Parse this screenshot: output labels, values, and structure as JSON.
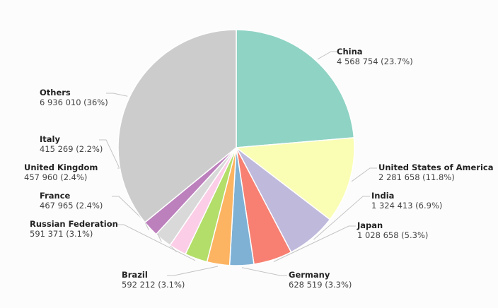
{
  "chart_data": {
    "type": "pie",
    "slices": [
      {
        "name": "China",
        "value": "4 568 754",
        "pct": "23.7%",
        "share": 23.7,
        "color": "#8fd3c4"
      },
      {
        "name": "United States of America",
        "value": "2 281 658",
        "pct": "11.8%",
        "share": 11.8,
        "color": "#fafdb4"
      },
      {
        "name": "India",
        "value": "1 324 413",
        "pct": "6.9%",
        "share": 6.9,
        "color": "#bfb9dc"
      },
      {
        "name": "Japan",
        "value": "1 028 658",
        "pct": "5.3%",
        "share": 5.3,
        "color": "#f78072"
      },
      {
        "name": "Germany",
        "value": "628 519",
        "pct": "3.3%",
        "share": 3.3,
        "color": "#7fb1d5"
      },
      {
        "name": "Brazil",
        "value": "592 212",
        "pct": "3.1%",
        "share": 3.1,
        "color": "#fcb462"
      },
      {
        "name": "Russian Federation",
        "value": "591 371",
        "pct": "3.1%",
        "share": 3.1,
        "color": "#b3de69"
      },
      {
        "name": "France",
        "value": "467 965",
        "pct": "2.4%",
        "share": 2.4,
        "color": "#fccde6"
      },
      {
        "name": "United Kingdom",
        "value": "457 960",
        "pct": "2.4%",
        "share": 2.4,
        "color": "#d9d9d9"
      },
      {
        "name": "Italy",
        "value": "415 269",
        "pct": "2.2%",
        "share": 2.2,
        "color": "#bc80bd"
      },
      {
        "name": "Others",
        "value": "6 936 010",
        "pct": "36%",
        "share": 36.0,
        "color": "#cccccc"
      }
    ]
  }
}
